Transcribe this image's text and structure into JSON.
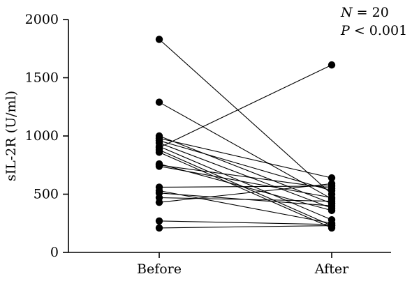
{
  "chart_data": {
    "type": "line",
    "categories": [
      "Before",
      "After"
    ],
    "ylabel": "sIL-2R (U/ml)",
    "ylim": [
      0,
      2000
    ],
    "yticks": [
      0,
      500,
      1000,
      1500,
      2000
    ],
    "annotations": {
      "n_text": "N = 20",
      "p_text": "P < 0.001"
    },
    "pairs": [
      [
        1830,
        500
      ],
      [
        1290,
        460
      ],
      [
        1000,
        420
      ],
      [
        980,
        640
      ],
      [
        960,
        530
      ],
      [
        940,
        380
      ],
      [
        910,
        280
      ],
      [
        900,
        1610
      ],
      [
        880,
        230
      ],
      [
        860,
        210
      ],
      [
        760,
        360
      ],
      [
        750,
        550
      ],
      [
        740,
        470
      ],
      [
        560,
        570
      ],
      [
        530,
        250
      ],
      [
        510,
        400
      ],
      [
        470,
        440
      ],
      [
        430,
        590
      ],
      [
        270,
        240
      ],
      [
        210,
        230
      ]
    ],
    "grid": false,
    "legend": "none"
  }
}
